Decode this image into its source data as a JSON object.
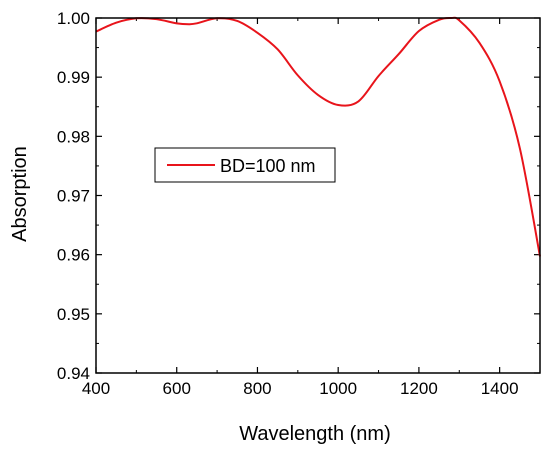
{
  "chart_data": {
    "type": "line",
    "xlabel": "Wavelength (nm)",
    "ylabel": "Absorption",
    "xlim": [
      400,
      1500
    ],
    "ylim": [
      0.94,
      1.0
    ],
    "x_ticks": [
      "400",
      "600",
      "800",
      "1000",
      "1200",
      "1400"
    ],
    "y_ticks": [
      "0.94",
      "0.95",
      "0.96",
      "0.97",
      "0.98",
      "0.99",
      "1.00"
    ],
    "grid": false,
    "legend_placement": "middle-left",
    "series": [
      {
        "name": "BD=100 nm",
        "color": "#e8141b",
        "x": [
          400,
          450,
          500,
          550,
          600,
          630,
          650,
          700,
          750,
          800,
          850,
          900,
          950,
          1000,
          1050,
          1100,
          1150,
          1200,
          1250,
          1280,
          1300,
          1350,
          1400,
          1450,
          1500
        ],
        "y": [
          0.9977,
          0.9992,
          0.99995,
          0.9998,
          0.9991,
          0.99895,
          0.9991,
          0.99995,
          0.9995,
          0.9975,
          0.9947,
          0.9903,
          0.987,
          0.9853,
          0.9859,
          0.9902,
          0.9939,
          0.9978,
          0.9997,
          1.0,
          0.9996,
          0.9958,
          0.9893,
          0.978,
          0.9597
        ]
      }
    ]
  }
}
